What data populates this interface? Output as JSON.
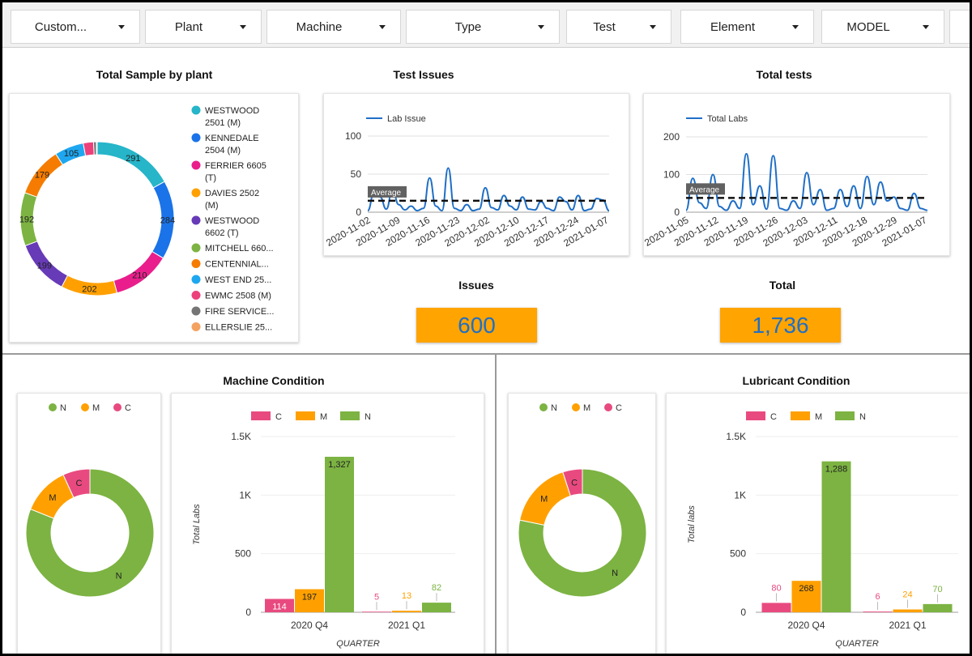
{
  "filters": [
    {
      "label": "Custom...",
      "value": "customer"
    },
    {
      "label": "Plant"
    },
    {
      "label": "Machine"
    },
    {
      "label": "Type"
    },
    {
      "label": "Test"
    },
    {
      "label": "Element"
    },
    {
      "label": "MODEL"
    }
  ],
  "titles": {
    "total_sample": "Total Sample by plant",
    "test_issues": "Test Issues",
    "total_tests": "Total tests",
    "issues": "Issues",
    "total": "Total",
    "machine_condition": "Machine Condition",
    "lubricant_condition": "Lubricant Condition"
  },
  "scorecards": {
    "issues": "600",
    "total": "1,736"
  },
  "colors": {
    "accent_orange": "#ffa400",
    "score_text": "#1f6fc6",
    "line_blue": "#1f6fc6",
    "N": "#7cb342",
    "M": "#ffa000",
    "C": "#e84a7f"
  },
  "chart_data": [
    {
      "id": "plant",
      "type": "pie",
      "title": "Total Sample by plant",
      "categories": [
        "WESTWOOD 2501 (M)",
        "KENNEDALE 2504 (M)",
        "FERRIER 6605 (T)",
        "DAVIES 2502 (M)",
        "WESTWOOD 6602 (T)",
        "MITCHELL 660...",
        "CENTENNIAL...",
        "WEST END 25...",
        "EWMC 2508 (M)",
        "FIRE SERVICE...",
        "ELLERSLIE 25..."
      ],
      "values": [
        291,
        284,
        210,
        202,
        199,
        192,
        179,
        105,
        37,
        10,
        3
      ],
      "slice_labels": [
        "291",
        "284",
        "210",
        "202",
        "199",
        "192",
        "179",
        "105",
        "",
        "",
        ""
      ],
      "colors": [
        "#26b5c9",
        "#1a73e8",
        "#e91e8c",
        "#ffa000",
        "#673ab7",
        "#7cb342",
        "#f57c00",
        "#1ea7f0",
        "#ec407a",
        "#757575",
        "#f4a261"
      ],
      "legend_lines": [
        [
          "WESTWOOD",
          "2501 (M)"
        ],
        [
          "KENNEDALE",
          "2504 (M)"
        ],
        [
          "FERRIER 6605",
          "(T)"
        ],
        [
          "DAVIES 2502",
          "(M)"
        ],
        [
          "WESTWOOD",
          "6602 (T)"
        ],
        [
          "MITCHELL 660..."
        ],
        [
          "CENTENNIAL..."
        ],
        [
          "WEST END 25..."
        ],
        [
          "EWMC 2508 (M)"
        ],
        [
          "FIRE SERVICE..."
        ],
        [
          "ELLERSLIE 25..."
        ]
      ]
    },
    {
      "id": "issues",
      "type": "line",
      "title": "Test Issues",
      "series": [
        {
          "name": "Lab Issue",
          "values": [
            2,
            25,
            20,
            4,
            30,
            10,
            3,
            8,
            2,
            5,
            45,
            8,
            2,
            58,
            5,
            2,
            10,
            2,
            4,
            32,
            6,
            3,
            22,
            8,
            3,
            20,
            4,
            3,
            14,
            5,
            2,
            20,
            14,
            3,
            22,
            2,
            4,
            18,
            16,
            2
          ]
        }
      ],
      "average": 15,
      "average_label": "Average",
      "ylim": [
        0,
        100
      ],
      "yticks": [
        0,
        50,
        100
      ],
      "xticks": [
        "2020-11-02",
        "2020-11-09",
        "2020-11-16",
        "2020-11-23",
        "2020-12-02",
        "2020-12-10",
        "2020-12-17",
        "2020-12-24",
        "2021-01-07"
      ]
    },
    {
      "id": "tests",
      "type": "line",
      "title": "Total tests",
      "series": [
        {
          "name": "Total Labs",
          "values": [
            5,
            90,
            25,
            10,
            100,
            15,
            5,
            30,
            10,
            155,
            20,
            70,
            8,
            150,
            10,
            5,
            30,
            10,
            105,
            20,
            60,
            5,
            10,
            60,
            15,
            70,
            10,
            95,
            20,
            80,
            30,
            40,
            10,
            5,
            50,
            10,
            5
          ]
        }
      ],
      "average": 38,
      "average_label": "Average",
      "ylim": [
        0,
        200
      ],
      "yticks": [
        0,
        100,
        200
      ],
      "xticks": [
        "2020-11-05",
        "2020-11-12",
        "2020-11-19",
        "2020-11-26",
        "2020-12-03",
        "2020-12-11",
        "2020-12-18",
        "2020-12-29",
        "2021-01-07"
      ]
    },
    {
      "id": "machine_donut",
      "type": "pie",
      "categories": [
        "N",
        "M",
        "C"
      ],
      "values": [
        1409,
        210,
        119
      ],
      "slice_labels": [
        "N",
        "M",
        "C"
      ],
      "colors": [
        "#7cb342",
        "#ffa000",
        "#e84a7f"
      ]
    },
    {
      "id": "machine_bar",
      "type": "bar",
      "categories": [
        "2020 Q4",
        "2021 Q1"
      ],
      "series": [
        {
          "name": "C",
          "values": [
            114,
            5
          ],
          "labels": [
            "114",
            "5"
          ]
        },
        {
          "name": "M",
          "values": [
            197,
            13
          ],
          "labels": [
            "197",
            "13"
          ]
        },
        {
          "name": "N",
          "values": [
            1327,
            82
          ],
          "labels": [
            "1,327",
            "82"
          ]
        }
      ],
      "colors": [
        "#e84a7f",
        "#ffa000",
        "#7cb342"
      ],
      "xlabel": "QUARTER",
      "ylabel": "Total Labs",
      "ylim": [
        0,
        1500
      ],
      "yticks": [
        0,
        500,
        1000,
        1500
      ],
      "ytick_labels": [
        "0",
        "500",
        "1K",
        "1.5K"
      ]
    },
    {
      "id": "lube_donut",
      "type": "pie",
      "categories": [
        "N",
        "M",
        "C"
      ],
      "values": [
        1358,
        292,
        86
      ],
      "slice_labels": [
        "N",
        "M",
        "C"
      ],
      "colors": [
        "#7cb342",
        "#ffa000",
        "#e84a7f"
      ]
    },
    {
      "id": "lube_bar",
      "type": "bar",
      "categories": [
        "2020 Q4",
        "2021 Q1"
      ],
      "series": [
        {
          "name": "C",
          "values": [
            80,
            6
          ],
          "labels": [
            "80",
            "6"
          ]
        },
        {
          "name": "M",
          "values": [
            268,
            24
          ],
          "labels": [
            "268",
            "24"
          ]
        },
        {
          "name": "N",
          "values": [
            1288,
            70
          ],
          "labels": [
            "1,288",
            "70"
          ]
        }
      ],
      "colors": [
        "#e84a7f",
        "#ffa000",
        "#7cb342"
      ],
      "xlabel": "QUARTER",
      "ylabel": "Total labs",
      "ylim": [
        0,
        1500
      ],
      "yticks": [
        0,
        500,
        1000,
        1500
      ],
      "ytick_labels": [
        "0",
        "500",
        "1K",
        "1.5K"
      ]
    }
  ]
}
